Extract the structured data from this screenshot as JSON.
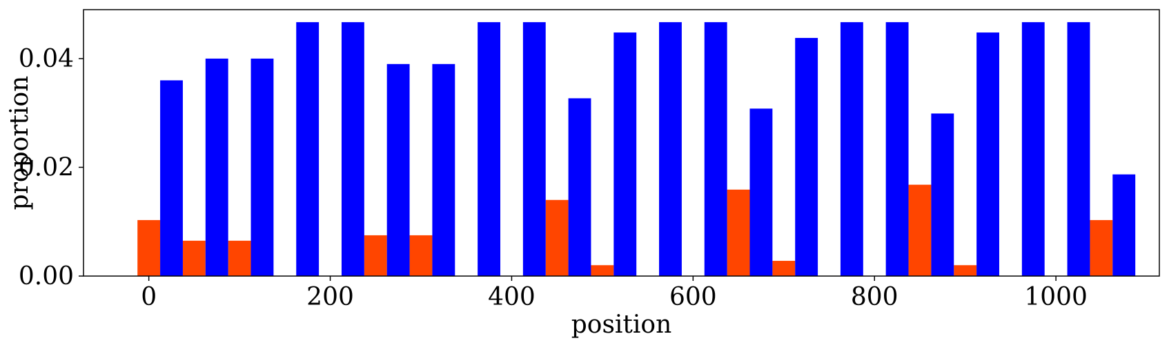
{
  "chart_data": {
    "type": "bar",
    "xlabel": "position",
    "ylabel": "proportion",
    "xlim": [
      -72,
      1114
    ],
    "ylim": [
      0,
      0.049
    ],
    "grid": false,
    "xticks": [
      0,
      200,
      400,
      600,
      800,
      1000
    ],
    "xtick_labels": [
      "0",
      "200",
      "400",
      "600",
      "800",
      "1000"
    ],
    "yticks": [
      0.0,
      0.02,
      0.04
    ],
    "ytick_labels": [
      "0.00",
      "0.02",
      "0.04"
    ],
    "bar_width": 25,
    "series": [
      {
        "color": "#ff4500",
        "x": [
          0,
          50,
          100,
          150,
          200,
          250,
          300,
          350,
          400,
          450,
          500,
          550,
          600,
          650,
          700,
          750,
          800,
          850,
          900,
          950,
          1000,
          1050
        ],
        "values": [
          0.0103,
          0.0065,
          0.0065,
          0,
          0,
          0.0075,
          0.0075,
          0,
          0,
          0.014,
          0.002,
          0,
          0,
          0.0159,
          0.0028,
          0,
          0,
          0.0168,
          0.002,
          0,
          0,
          0.0103
        ]
      },
      {
        "color": "#0000ff",
        "x": [
          25,
          75,
          125,
          175,
          225,
          275,
          325,
          375,
          425,
          475,
          525,
          575,
          625,
          675,
          725,
          775,
          825,
          875,
          925,
          975,
          1025,
          1075
        ],
        "values": [
          0.036,
          0.04,
          0.04,
          0.0467,
          0.0467,
          0.039,
          0.039,
          0.0467,
          0.0467,
          0.0327,
          0.0448,
          0.0467,
          0.0467,
          0.0308,
          0.0438,
          0.0467,
          0.0467,
          0.0299,
          0.0448,
          0.0467,
          0.0467,
          0.0187
        ]
      }
    ]
  }
}
